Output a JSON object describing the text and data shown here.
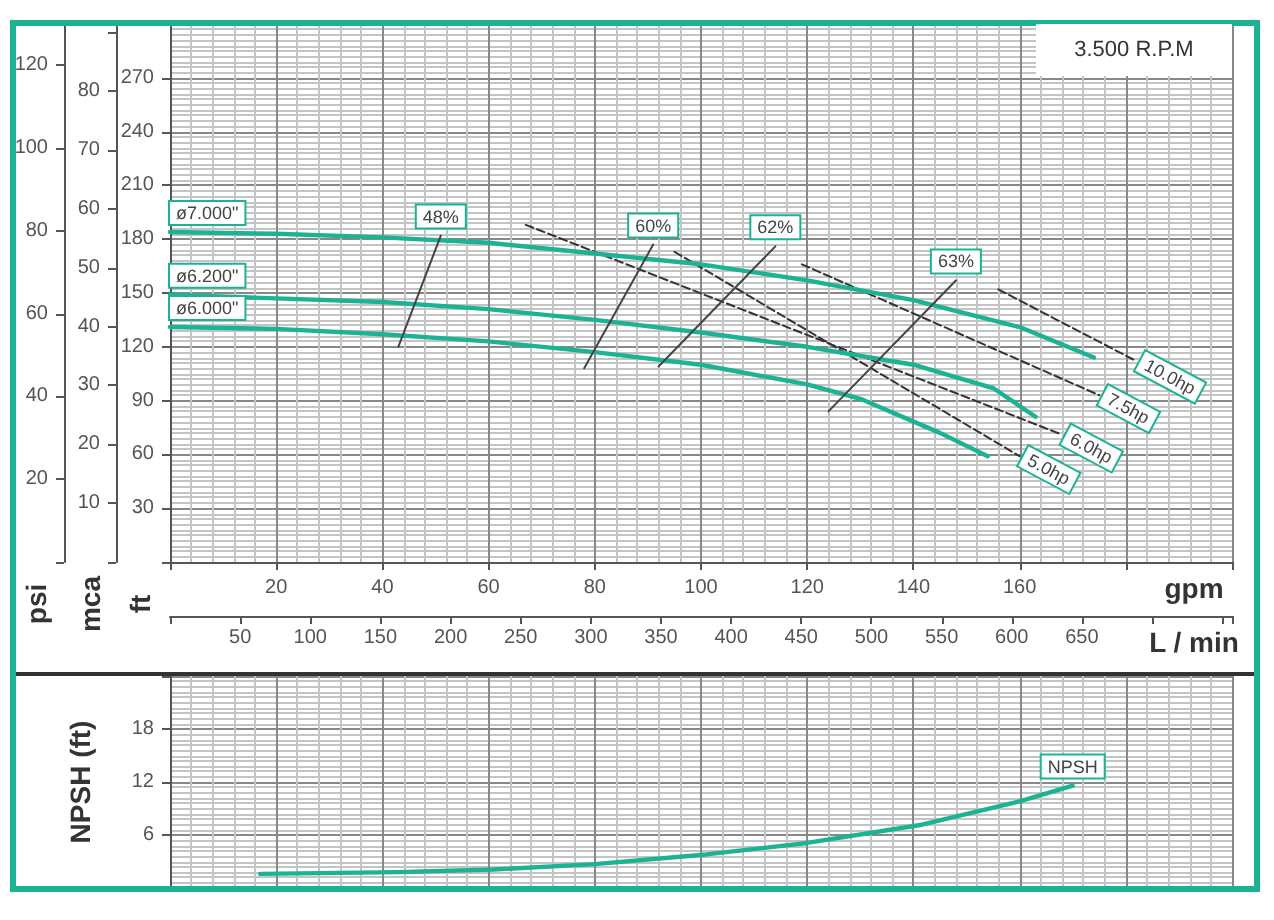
{
  "chart_data": [
    {
      "type": "line",
      "xlabel": "gpm",
      "x2label": "L / min",
      "ylabel": "ft",
      "y2label": "psi",
      "y3label": "mca",
      "xlim": [
        0,
        200
      ],
      "xticks": [
        20,
        40,
        60,
        80,
        100,
        120,
        140,
        160
      ],
      "x2lim": [
        0,
        757
      ],
      "x2ticks": [
        50,
        100,
        150,
        200,
        250,
        300,
        350,
        400,
        450,
        500,
        550,
        600,
        650
      ],
      "ylim": [
        0,
        300
      ],
      "yticks": [
        30,
        60,
        90,
        120,
        150,
        180,
        210,
        240,
        270
      ],
      "y2lim": [
        0,
        130
      ],
      "y2ticks": [
        20,
        40,
        60,
        80,
        100,
        120
      ],
      "y3lim": [
        0,
        91.4
      ],
      "y3ticks": [
        10,
        20,
        30,
        40,
        50,
        60,
        70,
        80
      ],
      "grid": true,
      "marker": "none",
      "annotations": [
        "3.500 R.P.M"
      ],
      "series": [
        {
          "name": "ø7.000\"",
          "color": "#1bb394",
          "x": [
            0,
            20,
            40,
            60,
            80,
            100,
            120,
            140,
            160,
            174
          ],
          "values": [
            184,
            183,
            181,
            178,
            172,
            166,
            157,
            146,
            131,
            114
          ]
        },
        {
          "name": "ø6.200\"",
          "color": "#1bb394",
          "x": [
            0,
            20,
            40,
            60,
            80,
            100,
            120,
            140,
            155,
            163
          ],
          "values": [
            149,
            147,
            145,
            141,
            135,
            128,
            120,
            110,
            97,
            81
          ]
        },
        {
          "name": "ø6.000\"",
          "color": "#1bb394",
          "x": [
            0,
            20,
            40,
            60,
            80,
            100,
            120,
            130,
            145,
            154
          ],
          "values": [
            131,
            130,
            127,
            123,
            117,
            110,
            99,
            91,
            72,
            59
          ]
        },
        {
          "name": "48%",
          "color": "#444444",
          "x": [
            43,
            51
          ],
          "values": [
            120,
            182
          ]
        },
        {
          "name": "60%",
          "color": "#444444",
          "x": [
            78,
            91
          ],
          "values": [
            108,
            177
          ]
        },
        {
          "name": "62%",
          "color": "#444444",
          "x": [
            92,
            114
          ],
          "values": [
            109,
            176
          ]
        },
        {
          "name": "63%",
          "color": "#444444",
          "x": [
            124,
            148
          ],
          "values": [
            84,
            157
          ]
        },
        {
          "name": "10.0hp",
          "color": "#333333",
          "line_style": "dashed",
          "x": [
            156,
            182
          ],
          "values": [
            152,
            112
          ]
        },
        {
          "name": "7.5hp",
          "color": "#333333",
          "line_style": "dashed",
          "x": [
            119,
            175
          ],
          "values": [
            166,
            93
          ]
        },
        {
          "name": "6.0hp",
          "color": "#333333",
          "line_style": "dashed",
          "x": [
            67,
            168
          ],
          "values": [
            188,
            71
          ]
        },
        {
          "name": "5.0hp",
          "color": "#333333",
          "line_style": "dashed",
          "x": [
            95,
            160
          ],
          "values": [
            173,
            59
          ]
        }
      ]
    },
    {
      "type": "line",
      "ylabel": "NPSH (ft)",
      "xlim": [
        0,
        200
      ],
      "xticks": [
        20,
        40,
        60,
        80,
        100,
        120,
        140,
        160
      ],
      "ylim": [
        0,
        24
      ],
      "yticks": [
        6,
        12,
        18
      ],
      "tick_labels": "y",
      "grid": true,
      "marker": "none",
      "series": [
        {
          "name": "NPSH",
          "color": "#1bb394",
          "x": [
            17,
            43,
            61,
            80,
            101,
            120,
            141,
            160,
            170
          ],
          "values": [
            1.6,
            1.8,
            2.1,
            2.7,
            3.8,
            5.1,
            7.1,
            9.8,
            11.6
          ]
        }
      ]
    }
  ]
}
